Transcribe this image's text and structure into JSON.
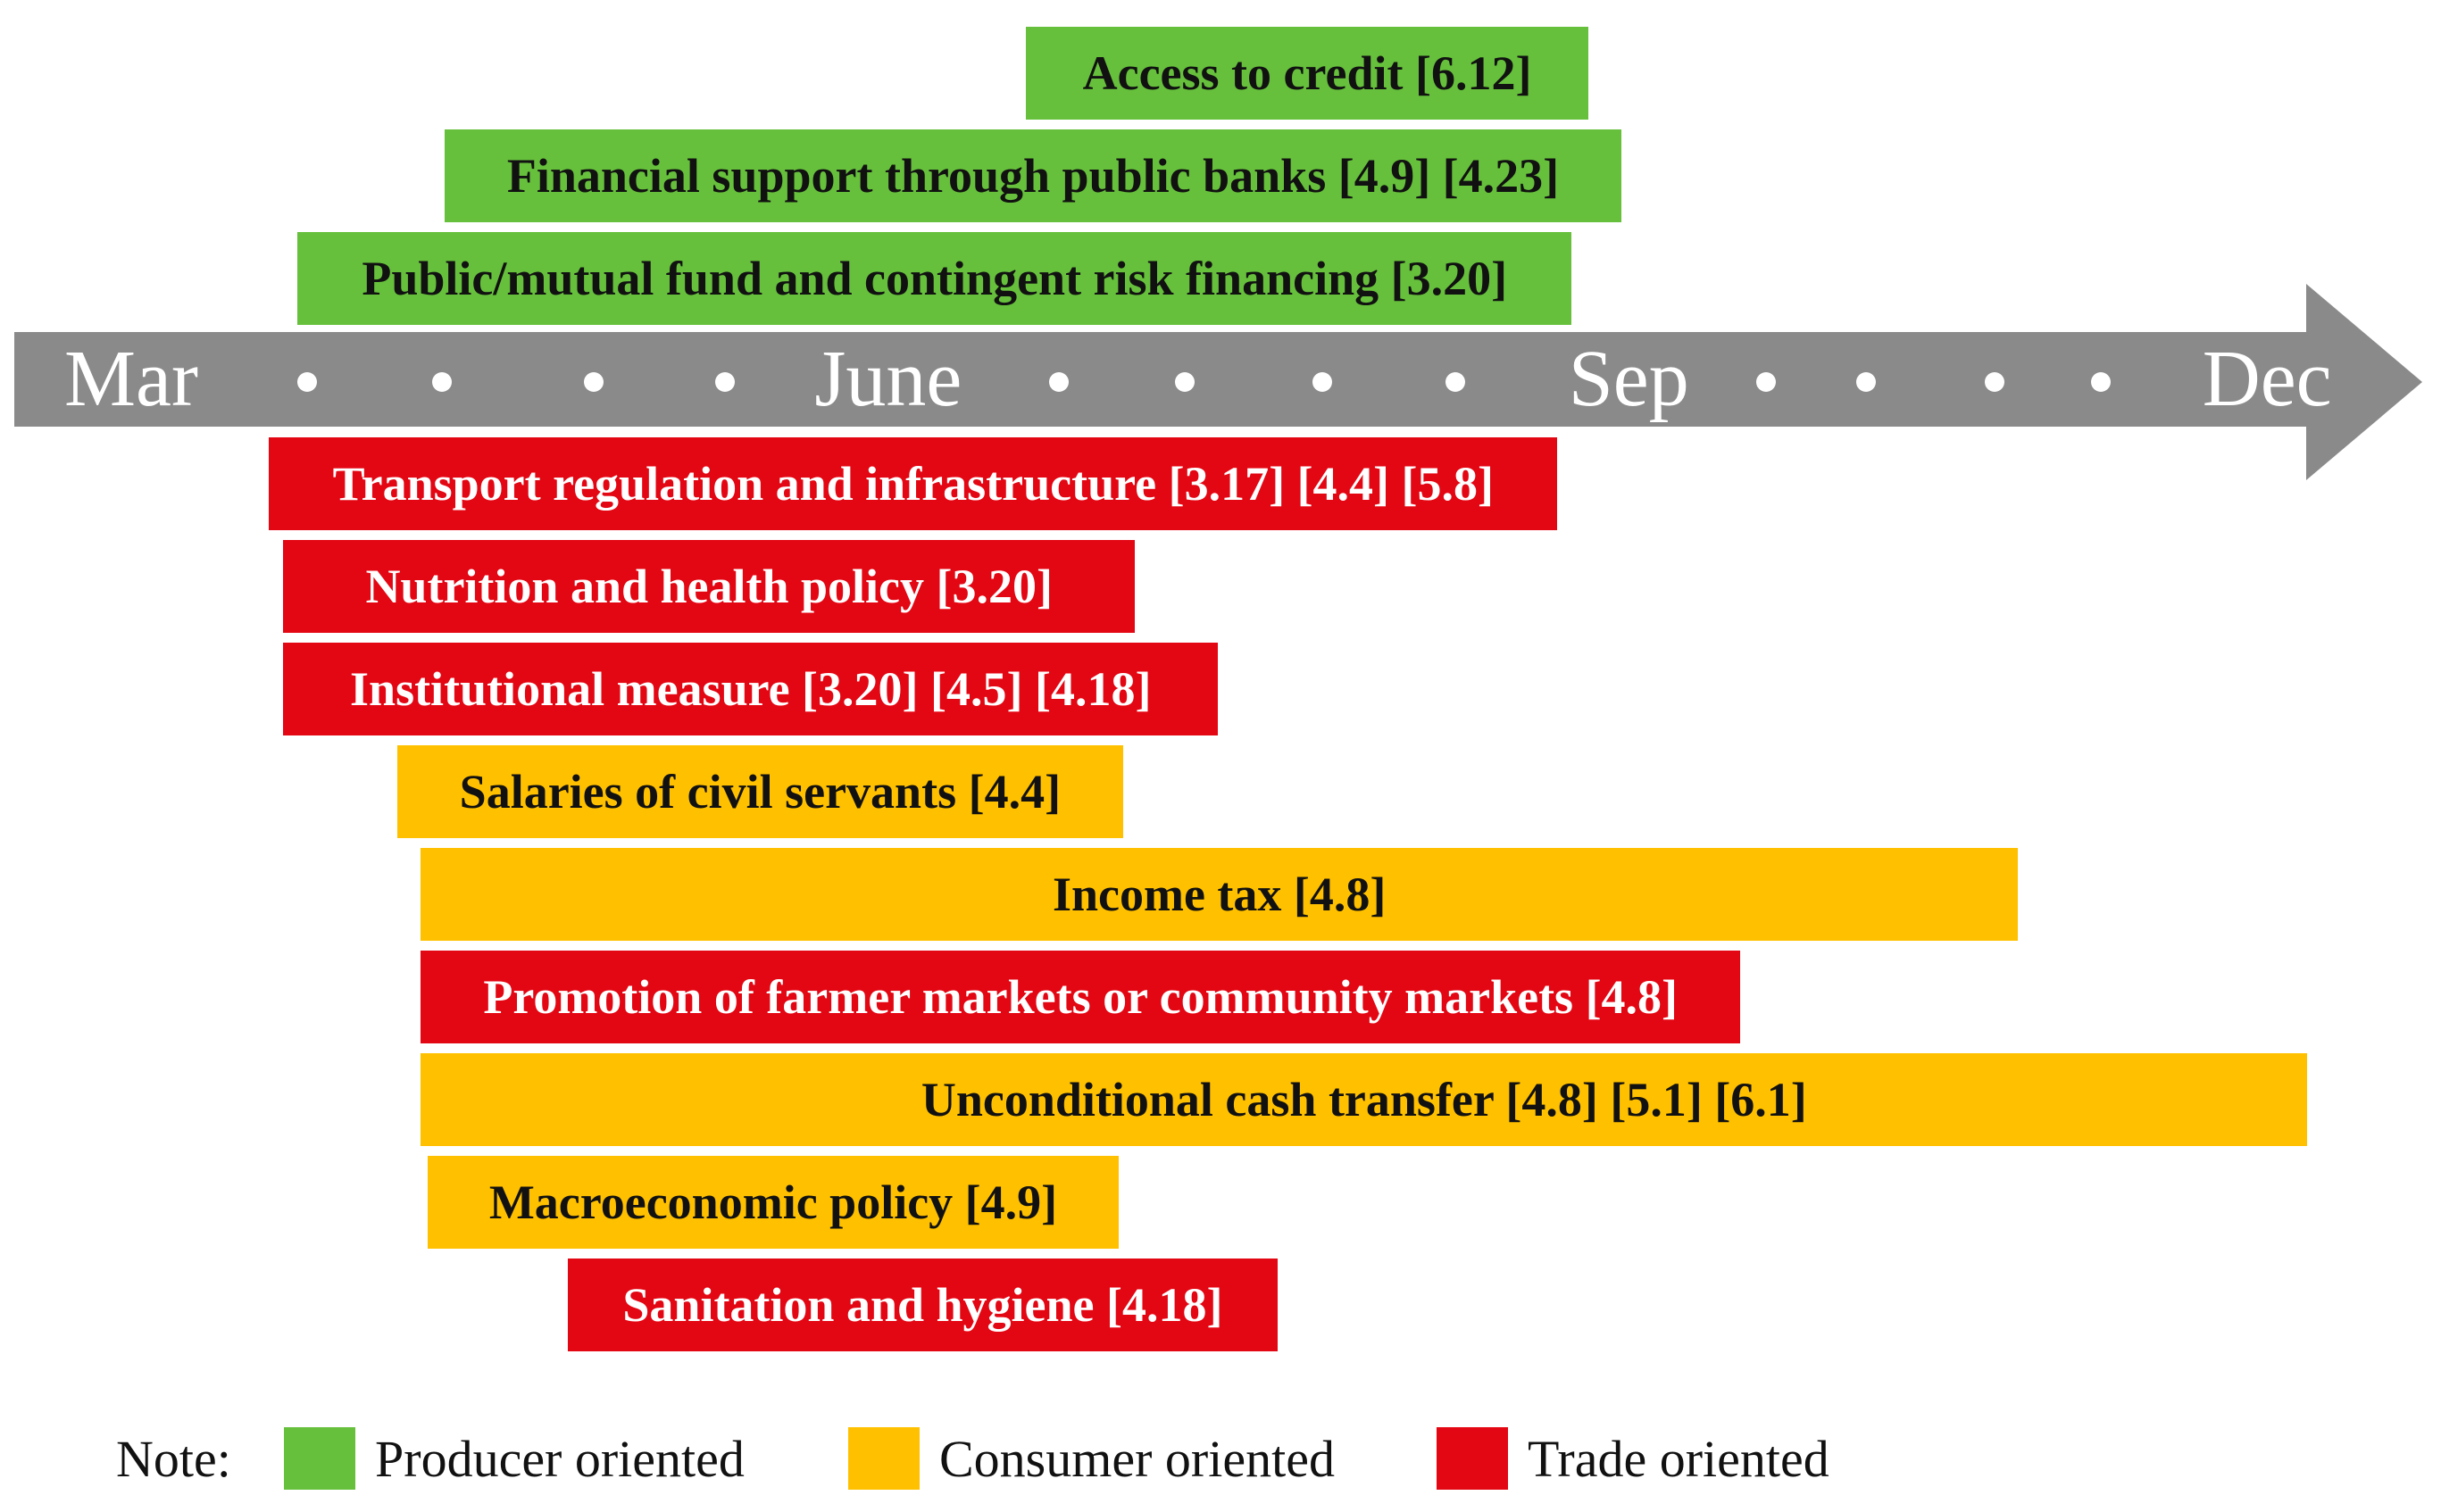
{
  "colors": {
    "producer": "#66C03C",
    "consumer": "#FFC000",
    "trade": "#E30613",
    "axis": "#8A8A8A",
    "axis_text": "#FFFFFF",
    "producer_text": "#111111",
    "consumer_text": "#111111",
    "trade_text": "#FFFFFF"
  },
  "chart_data": {
    "type": "bar",
    "subtype": "horizontal-gantt-timeline",
    "title": "",
    "xlabel": "",
    "ylabel": "",
    "axis": {
      "unit": "month",
      "range_months": [
        2.5,
        12.65
      ],
      "labels": [
        {
          "text": "Mar",
          "month": 3.0
        },
        {
          "text": "June",
          "month": 6.19
        },
        {
          "text": "Sep",
          "month": 9.31
        },
        {
          "text": "Dec",
          "month": 12.0
        }
      ],
      "dot_months": [
        3.74,
        4.31,
        4.95,
        5.5,
        6.91,
        7.44,
        8.02,
        8.58,
        9.89,
        10.31,
        10.85,
        11.3
      ]
    },
    "bars": [
      {
        "label": "Access to credit [6.12]",
        "category": "producer",
        "side": "above",
        "row": 0,
        "start_month": 6.77,
        "end_month": 9.14
      },
      {
        "label": "Financial support through public banks [4.9] [4.23]",
        "category": "producer",
        "side": "above",
        "row": 1,
        "start_month": 4.32,
        "end_month": 9.28
      },
      {
        "label": "Public/mutual fund and contingent risk financing [3.20]",
        "category": "producer",
        "side": "above",
        "row": 2,
        "start_month": 3.7,
        "end_month": 9.07
      },
      {
        "label": "Transport regulation and infrastructure [3.17] [4.4] [5.8]",
        "category": "trade",
        "side": "below",
        "row": 3,
        "start_month": 3.58,
        "end_month": 9.01
      },
      {
        "label": "Nutrition and health policy [3.20]",
        "category": "trade",
        "side": "below",
        "row": 4,
        "start_month": 3.64,
        "end_month": 7.23
      },
      {
        "label": "Institutional measure [3.20] [4.5] [4.18]",
        "category": "trade",
        "side": "below",
        "row": 5,
        "start_month": 3.64,
        "end_month": 7.58
      },
      {
        "label": "Salaries of civil servants [4.4]",
        "category": "consumer",
        "side": "below",
        "row": 6,
        "start_month": 4.12,
        "end_month": 7.18
      },
      {
        "label": "Income tax [4.8]",
        "category": "consumer",
        "side": "below",
        "row": 7,
        "start_month": 4.22,
        "end_month": 10.95
      },
      {
        "label": "Promotion of farmer markets or community markets [4.8]",
        "category": "trade",
        "side": "below",
        "row": 8,
        "start_month": 4.22,
        "end_month": 9.78
      },
      {
        "label": "Unconditional cash transfer [4.8] [5.1] [6.1]",
        "category": "consumer",
        "side": "below",
        "row": 9,
        "start_month": 4.22,
        "end_month": 12.17
      },
      {
        "label": "Macroeconomic policy [4.9]",
        "category": "consumer",
        "side": "below",
        "row": 10,
        "start_month": 4.25,
        "end_month": 7.16
      },
      {
        "label": "Sanitation and hygiene [4.18]",
        "category": "trade",
        "side": "below",
        "row": 11,
        "start_month": 4.84,
        "end_month": 7.83
      }
    ]
  },
  "legend": {
    "note_label": "Note:",
    "items": [
      {
        "label": "Producer oriented",
        "category": "producer"
      },
      {
        "label": "Consumer oriented",
        "category": "consumer"
      },
      {
        "label": "Trade oriented",
        "category": "trade"
      }
    ]
  }
}
